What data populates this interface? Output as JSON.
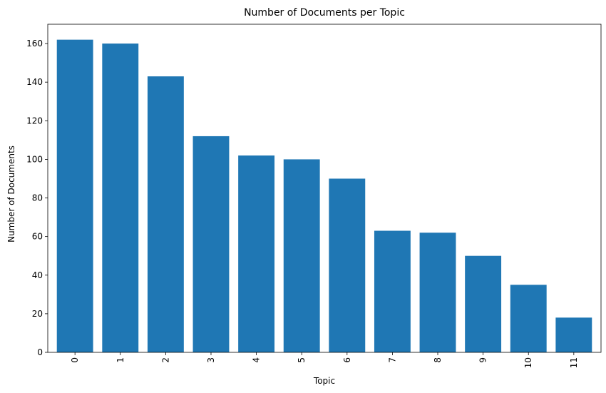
{
  "chart_data": {
    "type": "bar",
    "title": "Number of Documents per Topic",
    "xlabel": "Topic",
    "ylabel": "Number of Documents",
    "categories": [
      "0",
      "1",
      "2",
      "3",
      "4",
      "5",
      "6",
      "7",
      "8",
      "9",
      "10",
      "11"
    ],
    "values": [
      162,
      160,
      143,
      112,
      102,
      100,
      90,
      63,
      62,
      50,
      35,
      18
    ],
    "ylim": [
      0,
      170
    ],
    "yticks": [
      0,
      20,
      40,
      60,
      80,
      100,
      120,
      140,
      160
    ],
    "bar_color": "#1f77b4",
    "grid": false,
    "legend": "none"
  }
}
